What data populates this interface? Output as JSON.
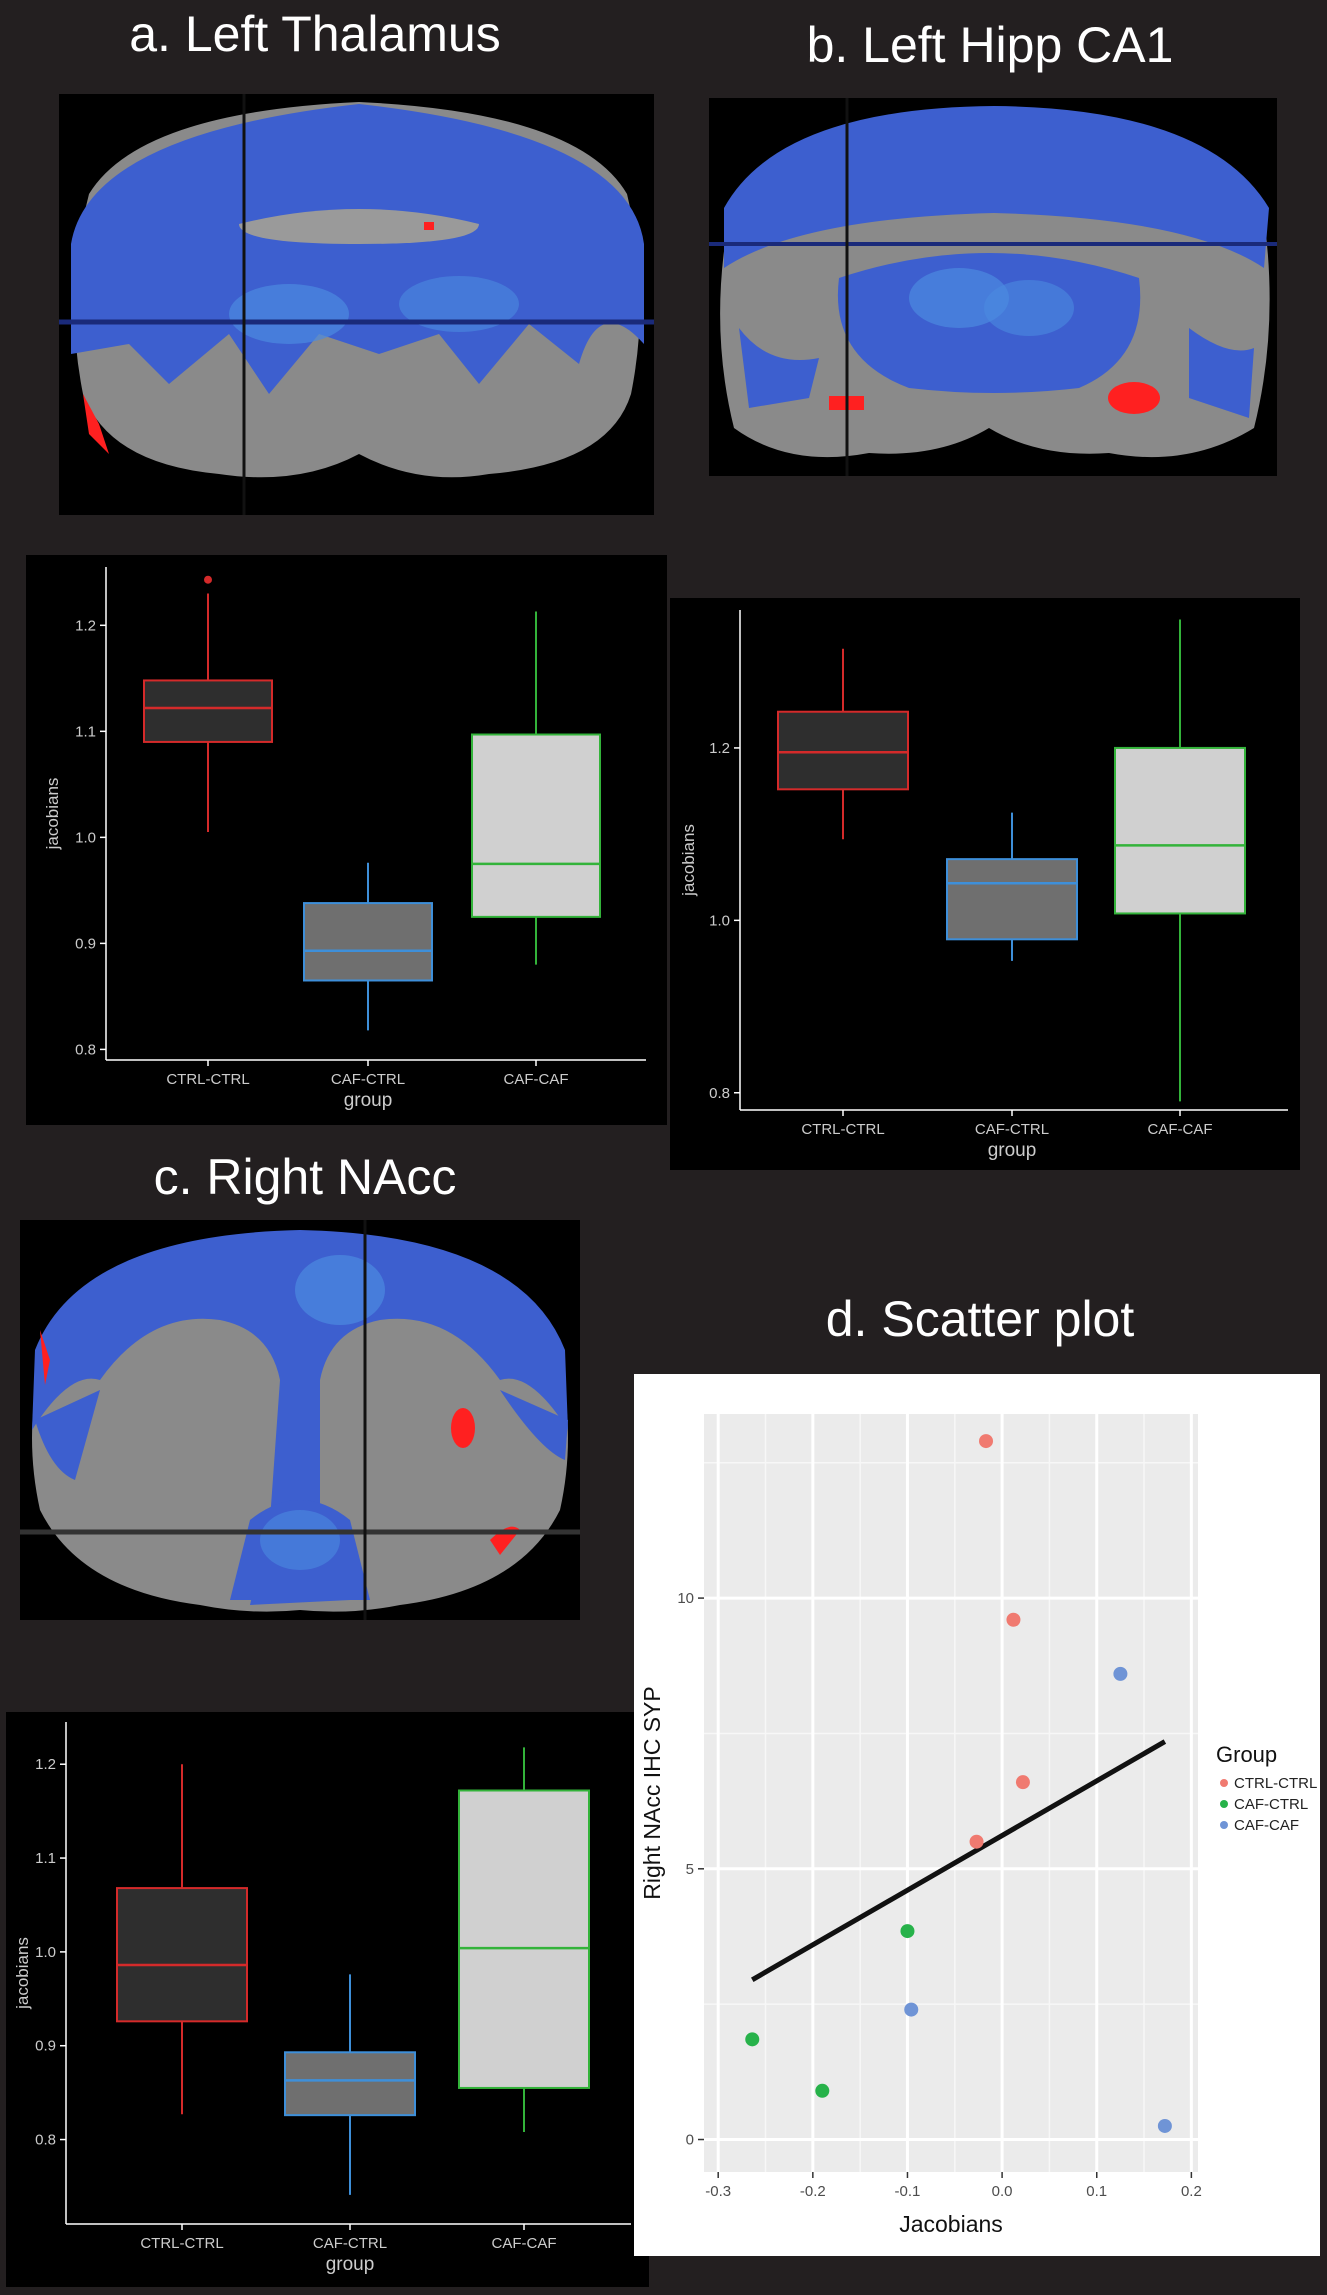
{
  "panels": {
    "a": {
      "title": "a. Left Thalamus"
    },
    "b": {
      "title": "b. Left Hipp CA1"
    },
    "c": {
      "title": "c. Right NAcc"
    },
    "d": {
      "title": "d. Scatter plot"
    }
  },
  "colors": {
    "ctrl_ctrl": "#d42a2a",
    "caf_ctrl": "#3e8fd9",
    "caf_caf": "#33b33a",
    "scatter_ctrl_ctrl": "#f07a70",
    "scatter_caf_ctrl": "#27b24a",
    "scatter_caf_caf": "#6f94d6",
    "brain_tissue": "#8a8a8a",
    "brain_blue": "#3d5fcf",
    "brain_red": "#ff2020"
  },
  "chart_data": [
    {
      "id": "box-a",
      "type": "box",
      "xlabel": "group",
      "ylabel": "jacobians",
      "categories": [
        "CTRL-CTRL",
        "CAF-CTRL",
        "CAF-CAF"
      ],
      "ylim": [
        0.79,
        1.255
      ],
      "yticks": [
        0.8,
        0.9,
        1.0,
        1.1,
        1.2
      ],
      "yticklabels": [
        "0.8",
        "0.9",
        "1.0",
        "1.1",
        "1.2"
      ],
      "boxes": [
        {
          "whisker_low": 1.005,
          "q1": 1.09,
          "median": 1.122,
          "q3": 1.148,
          "whisker_high": 1.23,
          "outliers": [
            1.243
          ],
          "fill": "#2e2e2e"
        },
        {
          "whisker_low": 0.818,
          "q1": 0.865,
          "median": 0.893,
          "q3": 0.938,
          "whisker_high": 0.976,
          "outliers": [],
          "fill": "#6f6f6f"
        },
        {
          "whisker_low": 0.88,
          "q1": 0.925,
          "median": 0.975,
          "q3": 1.097,
          "whisker_high": 1.213,
          "outliers": [],
          "fill": "#d0d0d0"
        }
      ]
    },
    {
      "id": "box-b",
      "type": "box",
      "xlabel": "group",
      "ylabel": "jacobians",
      "categories": [
        "CTRL-CTRL",
        "CAF-CTRL",
        "CAF-CAF"
      ],
      "ylim": [
        0.78,
        1.36
      ],
      "yticks": [
        0.8,
        1.0,
        1.2
      ],
      "yticklabels": [
        "0.8",
        "1.0",
        "1.2"
      ],
      "boxes": [
        {
          "whisker_low": 1.094,
          "q1": 1.152,
          "median": 1.195,
          "q3": 1.242,
          "whisker_high": 1.315,
          "outliers": [],
          "fill": "#2e2e2e"
        },
        {
          "whisker_low": 0.953,
          "q1": 0.978,
          "median": 1.043,
          "q3": 1.071,
          "whisker_high": 1.125,
          "outliers": [],
          "fill": "#6f6f6f"
        },
        {
          "whisker_low": 0.79,
          "q1": 1.008,
          "median": 1.087,
          "q3": 1.2,
          "whisker_high": 1.349,
          "outliers": [],
          "fill": "#d0d0d0"
        }
      ]
    },
    {
      "id": "box-c",
      "type": "box",
      "xlabel": "group",
      "ylabel": "jacobians",
      "categories": [
        "CTRL-CTRL",
        "CAF-CTRL",
        "CAF-CAF"
      ],
      "ylim": [
        0.71,
        1.245
      ],
      "yticks": [
        0.8,
        0.9,
        1.0,
        1.1,
        1.2
      ],
      "yticklabels": [
        "0.8",
        "0.9",
        "1.0",
        "1.1",
        "1.2"
      ],
      "boxes": [
        {
          "whisker_low": 0.827,
          "q1": 0.926,
          "median": 0.986,
          "q3": 1.068,
          "whisker_high": 1.2,
          "outliers": [],
          "fill": "#2e2e2e"
        },
        {
          "whisker_low": 0.741,
          "q1": 0.826,
          "median": 0.863,
          "q3": 0.893,
          "whisker_high": 0.976,
          "outliers": [],
          "fill": "#6f6f6f"
        },
        {
          "whisker_low": 0.808,
          "q1": 0.855,
          "median": 1.004,
          "q3": 1.172,
          "whisker_high": 1.218,
          "outliers": [],
          "fill": "#d0d0d0"
        }
      ]
    },
    {
      "id": "scatter-d",
      "type": "scatter",
      "xlabel": "Jacobians",
      "ylabel": "Right NAcc IHC SYP",
      "xlim": [
        -0.315,
        0.207
      ],
      "ylim": [
        -0.6,
        13.4
      ],
      "xticks": [
        -0.3,
        -0.2,
        -0.1,
        0.0,
        0.1,
        0.2
      ],
      "xticklabels": [
        "-0.3",
        "-0.2",
        "-0.1",
        "0.0",
        "0.1",
        "0.2"
      ],
      "yticks": [
        0,
        5,
        10
      ],
      "yticklabels": [
        "0",
        "5",
        "10"
      ],
      "legend_title": "Group",
      "legend_position": "right",
      "series": [
        {
          "name": "CTRL-CTRL",
          "x": [
            -0.017,
            0.012,
            0.022,
            -0.027
          ],
          "y": [
            12.9,
            9.6,
            6.6,
            5.5
          ]
        },
        {
          "name": "CAF-CTRL",
          "x": [
            -0.264,
            -0.19,
            -0.1
          ],
          "y": [
            1.85,
            0.9,
            3.85
          ]
        },
        {
          "name": "CAF-CAF",
          "x": [
            0.125,
            -0.096,
            0.172
          ],
          "y": [
            8.6,
            2.4,
            0.25
          ]
        }
      ],
      "fit_line": {
        "x": [
          -0.264,
          0.172
        ],
        "y": [
          2.95,
          7.35
        ]
      }
    }
  ]
}
